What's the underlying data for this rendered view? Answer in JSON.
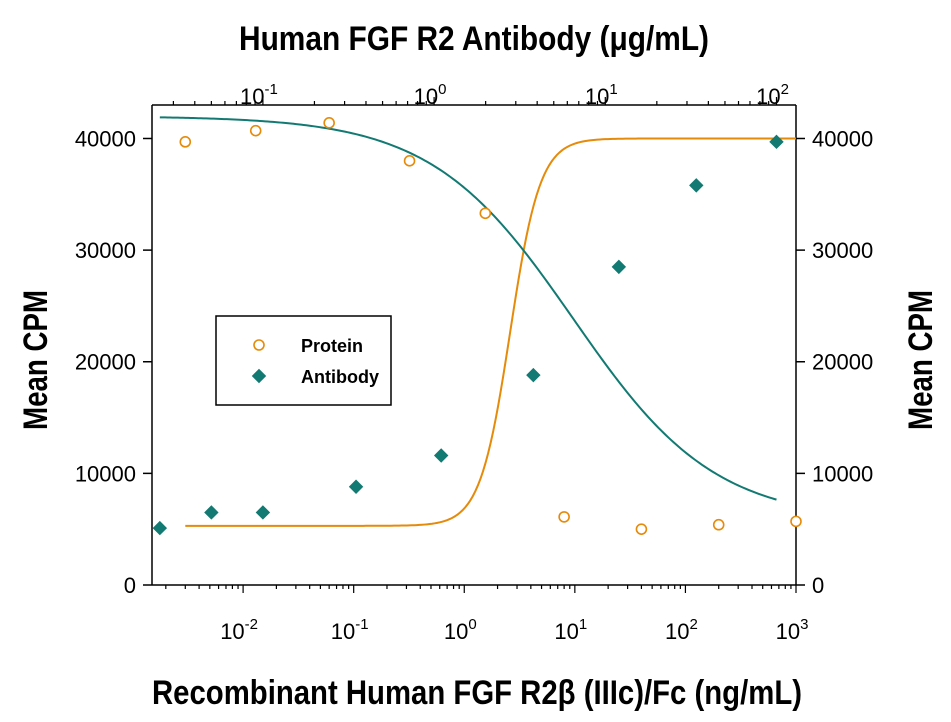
{
  "chart_data": {
    "type": "scatter",
    "title": "Human FGF R2  Antibody (μg/mL)",
    "xlabel": "Recombinant Human FGF R2β (IIIc)/Fc (ng/mL)",
    "ylabel_left": "Mean CPM",
    "ylabel_right": "Mean CPM",
    "x_scale": "log",
    "xlim": [
      0.0015,
      1000
    ],
    "ylim": [
      0,
      43000
    ],
    "top_x_scale": "log",
    "top_xlim": [
      0.0225,
      130
    ],
    "bottom_ticks": [
      {
        "value": 0.01,
        "base": "10",
        "exp": "-2"
      },
      {
        "value": 0.1,
        "base": "10",
        "exp": "-1"
      },
      {
        "value": 1,
        "base": "10",
        "exp": "0"
      },
      {
        "value": 10,
        "base": "10",
        "exp": "1"
      },
      {
        "value": 100,
        "base": "10",
        "exp": "2"
      },
      {
        "value": 1000,
        "base": "10",
        "exp": "3"
      }
    ],
    "top_ticks": [
      {
        "value": 0.1,
        "base": "10",
        "exp": "-1"
      },
      {
        "value": 1,
        "base": "10",
        "exp": "0"
      },
      {
        "value": 10,
        "base": "10",
        "exp": "1"
      },
      {
        "value": 100,
        "base": "10",
        "exp": "2"
      }
    ],
    "y_ticks": [
      {
        "value": 0,
        "label": "0"
      },
      {
        "value": 10000,
        "label": "10000"
      },
      {
        "value": 20000,
        "label": "20000"
      },
      {
        "value": 30000,
        "label": "30000"
      },
      {
        "value": 40000,
        "label": "40000"
      }
    ],
    "legend_position": "left-middle",
    "grid": false,
    "series": [
      {
        "name": "Protein",
        "axis": "bottom",
        "marker": "open-circle",
        "color": "#e68a0a",
        "points": [
          {
            "x": 0.003,
            "y": 39700
          },
          {
            "x": 0.013,
            "y": 40700
          },
          {
            "x": 0.06,
            "y": 41400
          },
          {
            "x": 0.32,
            "y": 38000
          },
          {
            "x": 1.55,
            "y": 33300
          },
          {
            "x": 8,
            "y": 6100
          },
          {
            "x": 40,
            "y": 5000
          },
          {
            "x": 200,
            "y": 5400
          },
          {
            "x": 1000,
            "y": 5700
          }
        ],
        "fit": {
          "model": "4PL",
          "top": 40000,
          "bottom": 5300,
          "ec50": 2.6,
          "hill": -3.2
        }
      },
      {
        "name": "Antibody",
        "axis": "top",
        "marker": "filled-diamond",
        "color": "#127a72",
        "points": [
          {
            "x": 0.025,
            "y": 5100
          },
          {
            "x": 0.05,
            "y": 6500
          },
          {
            "x": 0.1,
            "y": 6500
          },
          {
            "x": 0.35,
            "y": 8800
          },
          {
            "x": 1.1,
            "y": 11600
          },
          {
            "x": 3.8,
            "y": 18800
          },
          {
            "x": 12,
            "y": 28500
          },
          {
            "x": 34,
            "y": 35800
          },
          {
            "x": 100,
            "y": 39700
          }
        ],
        "fit": {
          "model": "4PL",
          "top": 42000,
          "bottom": 5700,
          "ec50": 6.5,
          "hill": 1.05
        }
      }
    ],
    "colors": {
      "protein": "#e68a0a",
      "antibody": "#127a72",
      "axis": "#000000"
    }
  }
}
